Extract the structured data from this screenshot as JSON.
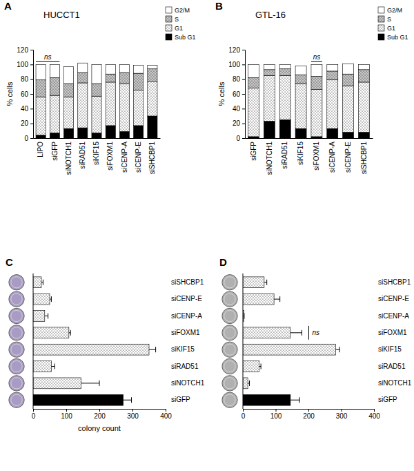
{
  "chart_data": [
    {
      "type": "bar",
      "stacked": true,
      "panel": "A",
      "title": "HUCCT1",
      "y_label": "% cells",
      "categories": [
        "LIPO",
        "siGFP",
        "siNOTCH1",
        "siRAD51",
        "siKIF15",
        "siFOXM1",
        "siCENP-A",
        "siCENP-E",
        "siSHCBP1"
      ],
      "series": [
        {
          "name": "Sub G1",
          "color": "#000000",
          "values": [
            4,
            7,
            13,
            14,
            7,
            17,
            9,
            17,
            30
          ]
        },
        {
          "name": "G1",
          "color": "#ffffff",
          "values": [
            52,
            51,
            43,
            61,
            50,
            59,
            65,
            48,
            47
          ]
        },
        {
          "name": "S",
          "color": "#c8c8c8",
          "values": [
            23,
            24,
            18,
            14,
            17,
            11,
            15,
            23,
            17
          ]
        },
        {
          "name": "G2/M",
          "color": "#ffffff",
          "values": [
            21,
            18,
            23,
            13,
            26,
            13,
            11,
            11,
            5
          ]
        }
      ],
      "ylim": [
        0,
        120
      ],
      "yticks": [
        0,
        20,
        40,
        60,
        80,
        100,
        120
      ],
      "legend": "top-right",
      "annotations": [
        {
          "text": "ns",
          "from": "LIPO",
          "to": "siGFP"
        }
      ]
    },
    {
      "type": "bar",
      "stacked": true,
      "panel": "B",
      "title": "GTL-16",
      "y_label": "% cells",
      "categories": [
        "siGFP",
        "siNOTCH1",
        "siRAD51",
        "siKIF15",
        "siFOXM1",
        "siCENP-A",
        "siCENP-E",
        "siSHCBP1"
      ],
      "series": [
        {
          "name": "Sub G1",
          "color": "#000000",
          "values": [
            2,
            23,
            25,
            13,
            2,
            13,
            8,
            8
          ]
        },
        {
          "name": "G1",
          "color": "#ffffff",
          "values": [
            66,
            62,
            60,
            61,
            64,
            66,
            63,
            68
          ]
        },
        {
          "name": "S",
          "color": "#c8c8c8",
          "values": [
            14,
            8,
            9,
            12,
            18,
            12,
            16,
            17
          ]
        },
        {
          "name": "G2/M",
          "color": "#ffffff",
          "values": [
            18,
            7,
            6,
            12,
            16,
            9,
            14,
            7
          ]
        }
      ],
      "ylim": [
        0,
        120
      ],
      "yticks": [
        0,
        20,
        40,
        60,
        80,
        100,
        120
      ],
      "legend": "top-right",
      "annotations": [
        {
          "text": "ns",
          "at": "siFOXM1"
        }
      ]
    },
    {
      "type": "bar",
      "orientation": "horizontal",
      "panel": "C",
      "x_label": "colony count",
      "categories": [
        "siSHCBP1",
        "siCENP-E",
        "siCENP-A",
        "siFOXM1",
        "siKIF15",
        "siRAD51",
        "siNOTCH1",
        "siGFP"
      ],
      "values": [
        25,
        50,
        35,
        108,
        350,
        55,
        145,
        272
      ],
      "errors": [
        5,
        5,
        10,
        5,
        20,
        10,
        55,
        25
      ],
      "colors": [
        "#ffffff",
        "#ffffff",
        "#ffffff",
        "#ffffff",
        "#ffffff",
        "#ffffff",
        "#ffffff",
        "#000000"
      ],
      "xlim": [
        0,
        400
      ],
      "xticks": [
        0,
        100,
        200,
        300,
        400
      ]
    },
    {
      "type": "bar",
      "orientation": "horizontal",
      "panel": "D",
      "categories": [
        "siSHCBP1",
        "siCENP-E",
        "siCENP-A",
        "siFOXM1",
        "siKIF15",
        "siRAD51",
        "siNOTCH1",
        "siGFP"
      ],
      "values": [
        65,
        95,
        3,
        145,
        283,
        50,
        15,
        145
      ],
      "errors": [
        8,
        18,
        1,
        35,
        12,
        5,
        5,
        28
      ],
      "colors": [
        "#ffffff",
        "#ffffff",
        "#ffffff",
        "#ffffff",
        "#ffffff",
        "#ffffff",
        "#ffffff",
        "#000000"
      ],
      "xlim": [
        0,
        400
      ],
      "xticks": [
        0,
        100,
        200,
        300,
        400
      ],
      "annotations": [
        {
          "text": "ns",
          "at": "siFOXM1"
        }
      ]
    }
  ]
}
